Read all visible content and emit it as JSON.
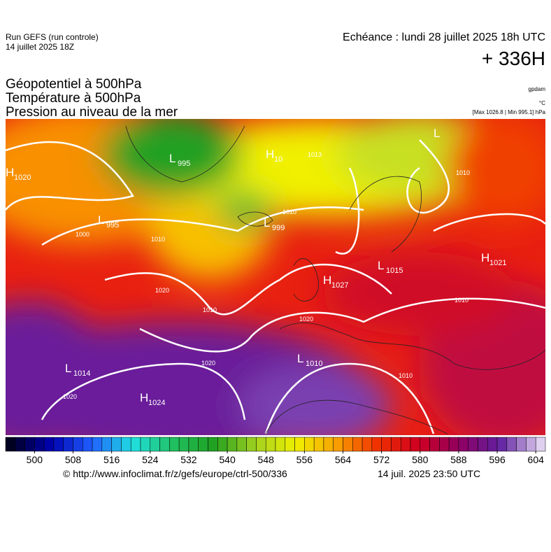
{
  "header": {
    "run": "Run GEFS (run controle)",
    "run_date": "14 juillet 2025 18Z",
    "valid": "Echéance : lundi 28 juillet 2025 18h UTC",
    "lead": "+ 336H"
  },
  "titles": [
    "Géopotentiel à 500hPa",
    "Température à 500hPa",
    "Pression au niveau de la mer"
  ],
  "units": {
    "geopotential": "gpdam",
    "temperature": "°C",
    "pressure": "[Max 1026.8 | Min 995.1] hPa"
  },
  "centers": [
    {
      "letter": "H",
      "value": 1020
    },
    {
      "letter": "L",
      "value": 995
    },
    {
      "letter": "L",
      "value": 995
    },
    {
      "letter": "H",
      "value": 10
    },
    {
      "letter": "L",
      "value": 999
    },
    {
      "letter": "L"
    },
    {
      "letter": "H",
      "value": 1027
    },
    {
      "letter": "L",
      "value": 1015
    },
    {
      "letter": "H",
      "value": 1021
    },
    {
      "letter": "L",
      "value": 1014
    },
    {
      "letter": "H",
      "value": 1024
    },
    {
      "letter": "L",
      "value": 1010
    }
  ],
  "isobar_labels": [
    1013,
    1000,
    1010,
    1020,
    1010,
    1020,
    1020,
    1020,
    1010,
    1010,
    1010,
    1010
  ],
  "colorbar": {
    "min": 494,
    "max": 606,
    "step": 2,
    "ticks": [
      500,
      508,
      516,
      524,
      532,
      540,
      548,
      556,
      564,
      572,
      580,
      588,
      596,
      604
    ],
    "stops": [
      "#000020",
      "#0000b0",
      "#2060ff",
      "#20e0e0",
      "#20c060",
      "#20a020",
      "#a0d020",
      "#f0f000",
      "#f8a000",
      "#f03000",
      "#d00020",
      "#900060",
      "#6020a0",
      "#e0d0f0"
    ]
  },
  "footer": {
    "source": "© http://www.infoclimat.fr/z/gefs/europe/ctrl-500/336",
    "time": "14 juil. 2025 23:50 UTC"
  }
}
